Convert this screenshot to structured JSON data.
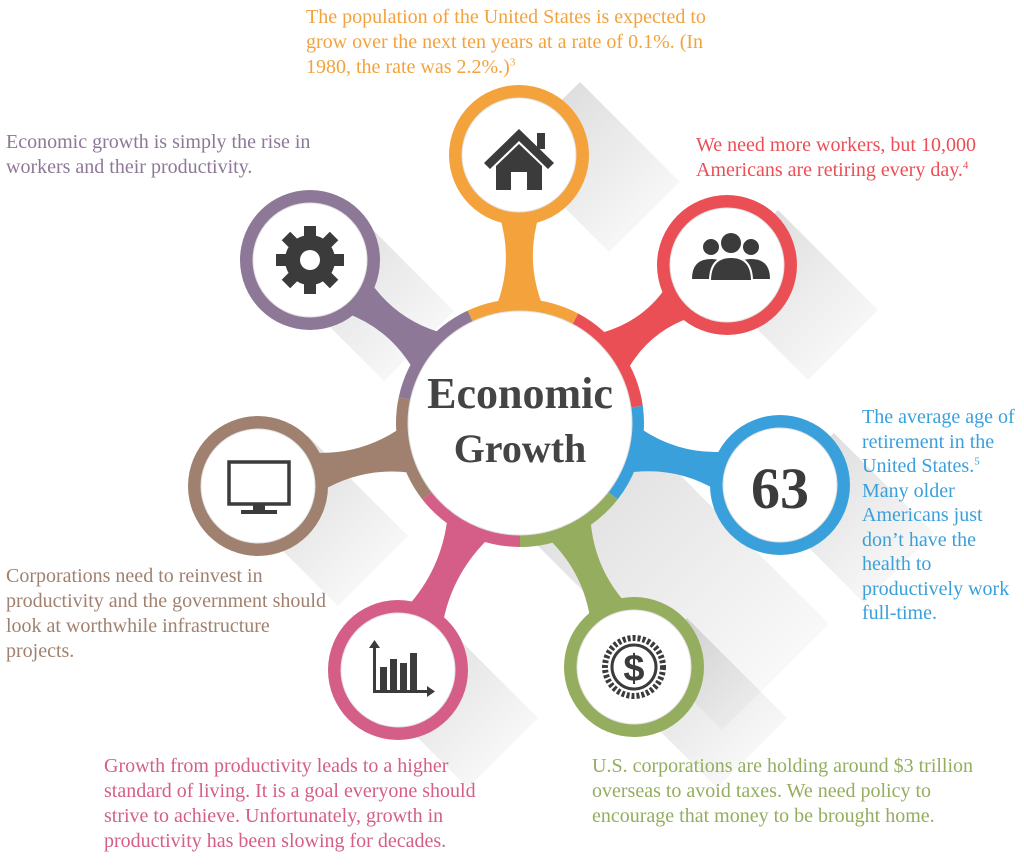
{
  "center": {
    "line1": "Economic",
    "line2": "Growth"
  },
  "colors": {
    "orange": "#f3a23c",
    "red": "#ea4f56",
    "blue": "#3aa0dc",
    "green": "#94ad5e",
    "pink": "#d45e87",
    "brown": "#a0816f",
    "purple": "#8e7897",
    "icon": "#3b3b3b"
  },
  "nodes": {
    "top": {
      "icon": "house-icon",
      "color": "orange",
      "text": "The population of the United States is expected to grow over the next ten years at a rate of 0.1%. (In 1980, the rate was 2.2%.)",
      "footnote": "3"
    },
    "top_right": {
      "icon": "people-icon",
      "color": "red",
      "text": "We need more workers, but 10,000 Americans are retiring every day.",
      "footnote": "4"
    },
    "right": {
      "icon": "number",
      "value": "63",
      "color": "blue",
      "text_before": "The average age of retirement in the United States.",
      "footnote": "5",
      "text_after": " Many older Americans just don’t have the health to productively work full-time."
    },
    "bottom_right": {
      "icon": "dollar-coin-icon",
      "color": "green",
      "text": "U.S. corporations are holding around $3 trillion overseas to avoid taxes. We need policy to encourage that money to be brought home."
    },
    "bottom_left": {
      "icon": "bar-chart-icon",
      "color": "pink",
      "text": "Growth from productivity leads to a higher standard of living. It is a goal everyone should strive to achieve. Unfortunately, growth in productivity has been slowing for decades."
    },
    "left": {
      "icon": "monitor-icon",
      "color": "brown",
      "text": "Corporations need to reinvest in productivity and the government should look at worthwhile infrastructure projects."
    },
    "top_left": {
      "icon": "gear-icon",
      "color": "purple",
      "text": "Economic growth is simply the rise in workers and their productivity."
    }
  }
}
